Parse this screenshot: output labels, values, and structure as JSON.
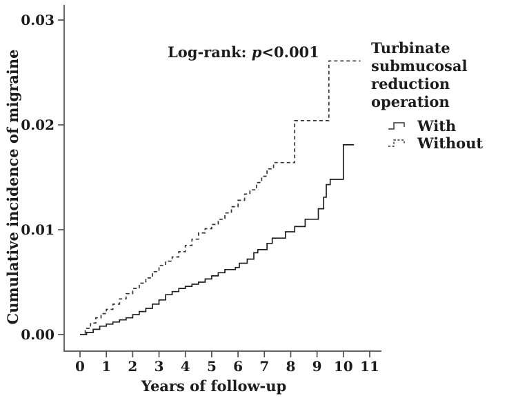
{
  "figure": {
    "background": "#ffffff",
    "annotation": {
      "prefix": "Log-rank: ",
      "p_symbol": "p",
      "value": "<0.001"
    },
    "legend": {
      "title_line1": "Turbinate submucosal",
      "title_line2": "reduction operation"
    }
  },
  "chart_data": {
    "type": "line",
    "step_mode": "steps-after",
    "title": "",
    "xlabel": "Years of follow-up",
    "ylabel": "Cumulative incidence of migraine",
    "xlim": [
      0,
      11
    ],
    "ylim": [
      0,
      0.03
    ],
    "grid": false,
    "legend_position": "top-right",
    "legend_title": "Turbinate submucosal reduction operation",
    "annotation": "Log-rank: p<0.001",
    "axis_color": "#4f4f4f",
    "x_ticks": [
      {
        "value": 0,
        "label": "0"
      },
      {
        "value": 1,
        "label": "1"
      },
      {
        "value": 2,
        "label": "2"
      },
      {
        "value": 3,
        "label": "3"
      },
      {
        "value": 4,
        "label": "4"
      },
      {
        "value": 5,
        "label": "5"
      },
      {
        "value": 6,
        "label": "6"
      },
      {
        "value": 7,
        "label": "7"
      },
      {
        "value": 8,
        "label": "8"
      },
      {
        "value": 9,
        "label": "9"
      },
      {
        "value": 10,
        "label": "10"
      },
      {
        "value": 11,
        "label": "11"
      }
    ],
    "y_ticks": [
      {
        "value": 0.0,
        "label": "0.00"
      },
      {
        "value": 0.01,
        "label": "0.01"
      },
      {
        "value": 0.02,
        "label": "0.02"
      },
      {
        "value": 0.03,
        "label": "0.03"
      }
    ],
    "series": [
      {
        "name": "With",
        "line": "solid",
        "color": "#1f1f1f",
        "points": [
          [
            0,
            0.0
          ],
          [
            0.25,
            0.0002
          ],
          [
            0.5,
            0.0005
          ],
          [
            0.75,
            0.0008
          ],
          [
            1,
            0.001
          ],
          [
            1.25,
            0.0012
          ],
          [
            1.5,
            0.0014
          ],
          [
            1.75,
            0.0016
          ],
          [
            2,
            0.0019
          ],
          [
            2.25,
            0.0022
          ],
          [
            2.5,
            0.0025
          ],
          [
            2.75,
            0.0029
          ],
          [
            3,
            0.0033
          ],
          [
            3.25,
            0.0038
          ],
          [
            3.5,
            0.0041
          ],
          [
            3.75,
            0.0044
          ],
          [
            4,
            0.0046
          ],
          [
            4.25,
            0.0048
          ],
          [
            4.5,
            0.005
          ],
          [
            4.75,
            0.0053
          ],
          [
            5,
            0.0056
          ],
          [
            5.25,
            0.0059
          ],
          [
            5.5,
            0.0062
          ],
          [
            5.9,
            0.0064
          ],
          [
            6.05,
            0.0068
          ],
          [
            6.35,
            0.0072
          ],
          [
            6.6,
            0.0078
          ],
          [
            6.75,
            0.0081
          ],
          [
            7.1,
            0.0087
          ],
          [
            7.3,
            0.0092
          ],
          [
            7.8,
            0.0098
          ],
          [
            8.15,
            0.0103
          ],
          [
            8.55,
            0.011
          ],
          [
            9.05,
            0.012
          ],
          [
            9.25,
            0.0131
          ],
          [
            9.35,
            0.0143
          ],
          [
            9.5,
            0.0148
          ],
          [
            10.0,
            0.0181
          ],
          [
            10.4,
            0.0181
          ]
        ]
      },
      {
        "name": "Without",
        "line": "dashed",
        "color": "#333333",
        "dash": [
          5,
          4
        ],
        "points": [
          [
            0,
            0.0
          ],
          [
            0.2,
            0.0006
          ],
          [
            0.4,
            0.0011
          ],
          [
            0.6,
            0.0016
          ],
          [
            0.8,
            0.002
          ],
          [
            1,
            0.0024
          ],
          [
            1.25,
            0.0029
          ],
          [
            1.5,
            0.0034
          ],
          [
            1.75,
            0.0039
          ],
          [
            2,
            0.0044
          ],
          [
            2.25,
            0.0049
          ],
          [
            2.5,
            0.0054
          ],
          [
            2.75,
            0.006
          ],
          [
            3,
            0.0066
          ],
          [
            3.25,
            0.007
          ],
          [
            3.5,
            0.0074
          ],
          [
            3.75,
            0.0079
          ],
          [
            4,
            0.0085
          ],
          [
            4.25,
            0.0091
          ],
          [
            4.5,
            0.0097
          ],
          [
            4.75,
            0.0101
          ],
          [
            5,
            0.0105
          ],
          [
            5.25,
            0.011
          ],
          [
            5.5,
            0.0116
          ],
          [
            5.75,
            0.0122
          ],
          [
            6,
            0.0128
          ],
          [
            6.25,
            0.0134
          ],
          [
            6.45,
            0.0138
          ],
          [
            6.7,
            0.0145
          ],
          [
            6.9,
            0.0151
          ],
          [
            7.1,
            0.0158
          ],
          [
            7.35,
            0.0164
          ],
          [
            8.15,
            0.0204
          ],
          [
            9.45,
            0.0261
          ],
          [
            10.65,
            0.0261
          ]
        ]
      }
    ]
  }
}
